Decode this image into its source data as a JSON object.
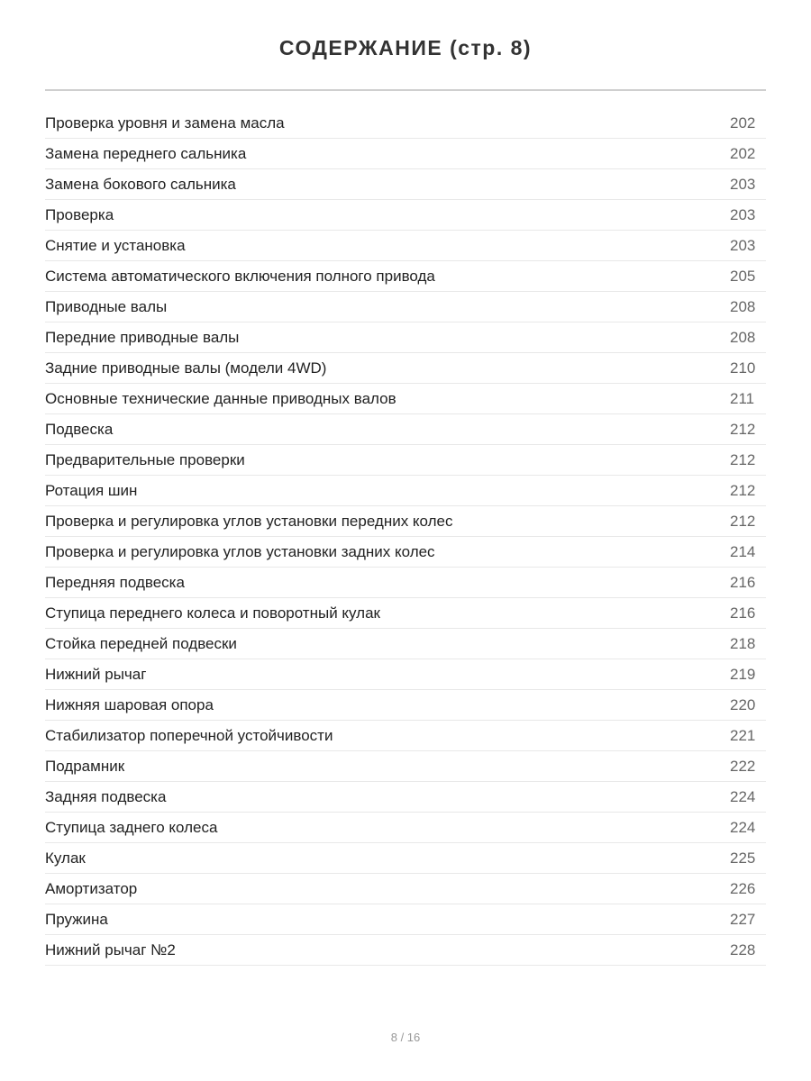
{
  "title": "СОДЕРЖАНИЕ (стр. 8)",
  "entries": [
    {
      "label": "Проверка уровня и замена масла",
      "page": "202"
    },
    {
      "label": "Замена переднего сальника",
      "page": "202"
    },
    {
      "label": "Замена бокового сальника",
      "page": "203"
    },
    {
      "label": "Проверка",
      "page": "203"
    },
    {
      "label": "Снятие и установка",
      "page": "203"
    },
    {
      "label": "Система автоматического включения полного привода",
      "page": "205"
    },
    {
      "label": "Приводные валы",
      "page": "208"
    },
    {
      "label": "Передние приводные валы",
      "page": "208"
    },
    {
      "label": "Задние приводные валы (модели 4WD)",
      "page": "210"
    },
    {
      "label": "Основные технические данные приводных валов",
      "page": "211"
    },
    {
      "label": "Подвеска",
      "page": "212"
    },
    {
      "label": "Предварительные проверки",
      "page": "212"
    },
    {
      "label": "Ротация шин",
      "page": "212"
    },
    {
      "label": "Проверка и регулировка углов установки передних колес",
      "page": "212"
    },
    {
      "label": "Проверка и регулировка углов установки задних колес",
      "page": "214"
    },
    {
      "label": "Передняя подвеска",
      "page": "216"
    },
    {
      "label": "Ступица переднего колеса и поворотный кулак",
      "page": "216"
    },
    {
      "label": "Стойка передней подвески",
      "page": "218"
    },
    {
      "label": "Нижний рычаг",
      "page": "219"
    },
    {
      "label": "Нижняя шаровая опора",
      "page": "220"
    },
    {
      "label": "Стабилизатор поперечной устойчивости",
      "page": "221"
    },
    {
      "label": "Подрамник",
      "page": "222"
    },
    {
      "label": "Задняя подвеска",
      "page": "224"
    },
    {
      "label": "Ступица заднего колеса",
      "page": "224"
    },
    {
      "label": "Кулак",
      "page": "225"
    },
    {
      "label": "Амортизатор",
      "page": "226"
    },
    {
      "label": "Пружина",
      "page": "227"
    },
    {
      "label": "Нижний рычаг №2",
      "page": "228"
    }
  ],
  "footer": {
    "pagination": "8 / 16"
  }
}
